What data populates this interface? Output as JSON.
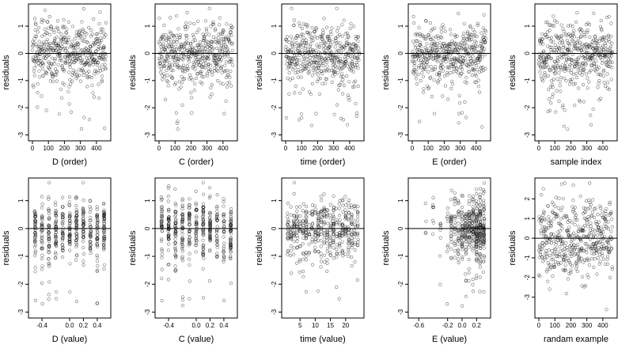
{
  "figure": {
    "layout": "2 rows x 5 columns of residual scatter plots",
    "point_style": "open circles",
    "reference_line": "horizontal line at residual 0"
  },
  "chart_data": [
    {
      "type": "scatter",
      "xlabel": "D (order)",
      "ylabel": "residuals",
      "xticks": [
        "0",
        "100",
        "200",
        "300",
        "400"
      ],
      "yticks": [
        "-3",
        "-2",
        "-1",
        "0",
        "1"
      ],
      "xlim": [
        -5,
        470
      ],
      "ylim": [
        -3.1,
        1.7
      ],
      "n_points": 460,
      "x_kind": "index",
      "y_scale": 0.55
    },
    {
      "type": "scatter",
      "xlabel": "C (order)",
      "ylabel": "residuals",
      "xticks": [
        "0",
        "100",
        "200",
        "300",
        "400"
      ],
      "yticks": [
        "-3",
        "-2",
        "-1",
        "0",
        "1"
      ],
      "xlim": [
        -5,
        470
      ],
      "ylim": [
        -3.1,
        1.7
      ],
      "n_points": 460,
      "x_kind": "index",
      "y_scale": 0.55
    },
    {
      "type": "scatter",
      "xlabel": "time (order)",
      "ylabel": "residuals",
      "xticks": [
        "0",
        "100",
        "200",
        "300",
        "400"
      ],
      "yticks": [
        "-3",
        "-2",
        "-1",
        "0",
        "1"
      ],
      "xlim": [
        -5,
        470
      ],
      "ylim": [
        -3.1,
        1.7
      ],
      "n_points": 460,
      "x_kind": "index",
      "y_scale": 0.55
    },
    {
      "type": "scatter",
      "xlabel": "E (order)",
      "ylabel": "residuals",
      "xticks": [
        "0",
        "100",
        "200",
        "300",
        "400"
      ],
      "yticks": [
        "-3",
        "-2",
        "-1",
        "0",
        "1"
      ],
      "xlim": [
        -5,
        470
      ],
      "ylim": [
        -3.1,
        1.7
      ],
      "n_points": 460,
      "x_kind": "index",
      "y_scale": 0.55
    },
    {
      "type": "scatter",
      "xlabel": "sample index",
      "ylabel": "residuals",
      "xticks": [
        "0",
        "100",
        "200",
        "300",
        "400"
      ],
      "yticks": [
        "-3",
        "-2",
        "-1",
        "0",
        "1"
      ],
      "xlim": [
        -5,
        470
      ],
      "ylim": [
        -3.1,
        1.7
      ],
      "n_points": 460,
      "x_kind": "index",
      "y_scale": 0.55
    },
    {
      "type": "scatter",
      "xlabel": "D (value)",
      "ylabel": "residuals",
      "xticks": [
        "-0.4",
        "0.0",
        "0.2",
        "0.4"
      ],
      "yticks": [
        "-3",
        "-2",
        "-1",
        "0",
        "1"
      ],
      "xlim": [
        -0.55,
        0.55
      ],
      "ylim": [
        -3.1,
        1.7
      ],
      "n_points": 460,
      "x_kind": "levels",
      "x_levels": [
        -0.5,
        -0.4,
        -0.3,
        -0.2,
        -0.1,
        0.0,
        0.1,
        0.2,
        0.3,
        0.4,
        0.5
      ],
      "y_scale": 0.55
    },
    {
      "type": "scatter",
      "xlabel": "C (value)",
      "ylabel": "residuals",
      "xticks": [
        "-0.4",
        "0.0",
        "0.2",
        "0.4"
      ],
      "yticks": [
        "-3",
        "-2",
        "-1",
        "0",
        "1"
      ],
      "xlim": [
        -0.55,
        0.55
      ],
      "ylim": [
        -3.1,
        1.7
      ],
      "n_points": 460,
      "x_kind": "levels",
      "x_levels": [
        -0.5,
        -0.4,
        -0.3,
        -0.2,
        -0.1,
        0.0,
        0.1,
        0.2,
        0.3,
        0.4,
        0.5
      ],
      "y_scale": 0.55
    },
    {
      "type": "scatter",
      "xlabel": "time (value)",
      "ylabel": "residuals",
      "xticks": [
        "5",
        "10",
        "15",
        "20"
      ],
      "yticks": [
        "-3",
        "-2",
        "-1",
        "0",
        "1"
      ],
      "xlim": [
        0,
        25
      ],
      "ylim": [
        -3.1,
        1.7
      ],
      "n_points": 460,
      "x_kind": "levels",
      "x_levels": [
        1,
        2,
        3,
        4,
        5,
        6,
        7,
        8,
        9,
        10,
        11,
        12,
        13,
        14,
        15,
        16,
        17,
        18,
        19,
        20,
        21,
        22,
        23,
        24
      ],
      "y_scale": 0.55
    },
    {
      "type": "scatter",
      "xlabel": "E (value)",
      "ylabel": "residuals",
      "xticks": [
        "-0.6",
        "-0.2",
        "0.0",
        "0.2"
      ],
      "yticks": [
        "-3",
        "-2",
        "-1",
        "0",
        "1"
      ],
      "xlim": [
        -0.7,
        0.35
      ],
      "ylim": [
        -3.1,
        1.7
      ],
      "n_points": 460,
      "x_kind": "skewed",
      "x_levels": [
        -0.65,
        -0.5,
        -0.4,
        -0.3,
        -0.2,
        -0.15,
        -0.1,
        -0.05,
        0.0,
        0.05,
        0.1,
        0.15,
        0.2,
        0.25,
        0.3
      ],
      "y_scale": 0.55
    },
    {
      "type": "scatter",
      "xlabel": "randam example",
      "ylabel": "residuals",
      "xticks": [
        "0",
        "100",
        "200",
        "300",
        "400"
      ],
      "yticks": [
        "-3",
        "-2",
        "-1",
        "0",
        "1",
        "2"
      ],
      "xlim": [
        -5,
        470
      ],
      "ylim": [
        -3.9,
        2.9
      ],
      "n_points": 460,
      "x_kind": "index",
      "y_scale": 1.0
    }
  ]
}
